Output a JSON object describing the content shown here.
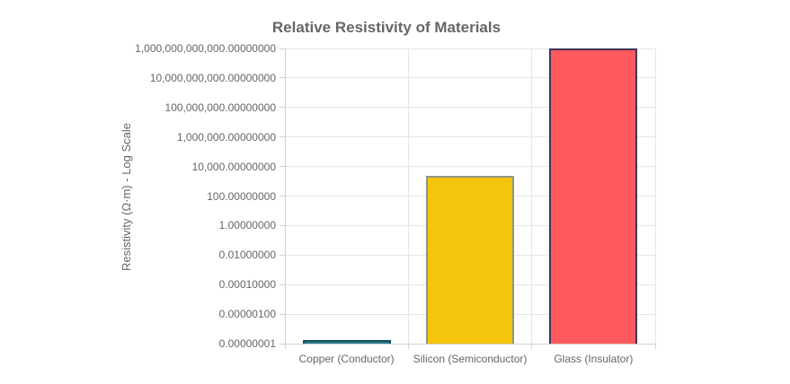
{
  "chart_data": {
    "type": "bar",
    "title": "Relative Resistivity of Materials",
    "xlabel": "",
    "ylabel": "Resistivity (Ω·m) - Log Scale",
    "yscale": "log",
    "ylim": [
      1e-08,
      1000000000000.0
    ],
    "grid": true,
    "legend_position": "none",
    "categories": [
      "Copper (Conductor)",
      "Silicon (Semiconductor)",
      "Glass (Insulator)"
    ],
    "values": [
      1.68e-08,
      2300,
      1000000000000.0
    ],
    "series": [
      {
        "name": "Resistivity",
        "values": [
          1.68e-08,
          2300,
          1000000000000.0
        ]
      }
    ],
    "yticks": [
      {
        "value": 1000000000000.0,
        "label": "1,000,000,000,000.00000000"
      },
      {
        "value": 10000000000.0,
        "label": "10,000,000,000.00000000"
      },
      {
        "value": 100000000.0,
        "label": "100,000,000.00000000"
      },
      {
        "value": 1000000.0,
        "label": "1,000,000.00000000"
      },
      {
        "value": 10000.0,
        "label": "10,000.00000000"
      },
      {
        "value": 100.0,
        "label": "100.00000000"
      },
      {
        "value": 1,
        "label": "1.00000000"
      },
      {
        "value": 0.01,
        "label": "0.01000000"
      },
      {
        "value": 0.0001,
        "label": "0.00010000"
      },
      {
        "value": 1e-06,
        "label": "0.00000100"
      },
      {
        "value": 1e-08,
        "label": "0.00000001"
      }
    ],
    "colors": {
      "bar_fill": [
        "#2a7f8e",
        "#f5c40d",
        "#ff5a5f"
      ],
      "bar_border": [
        "#11505c",
        "#8f9582",
        "#3f3356"
      ],
      "gridline": "#e6e6e6",
      "axis": "#d2d2d2",
      "text": "#666666"
    }
  }
}
